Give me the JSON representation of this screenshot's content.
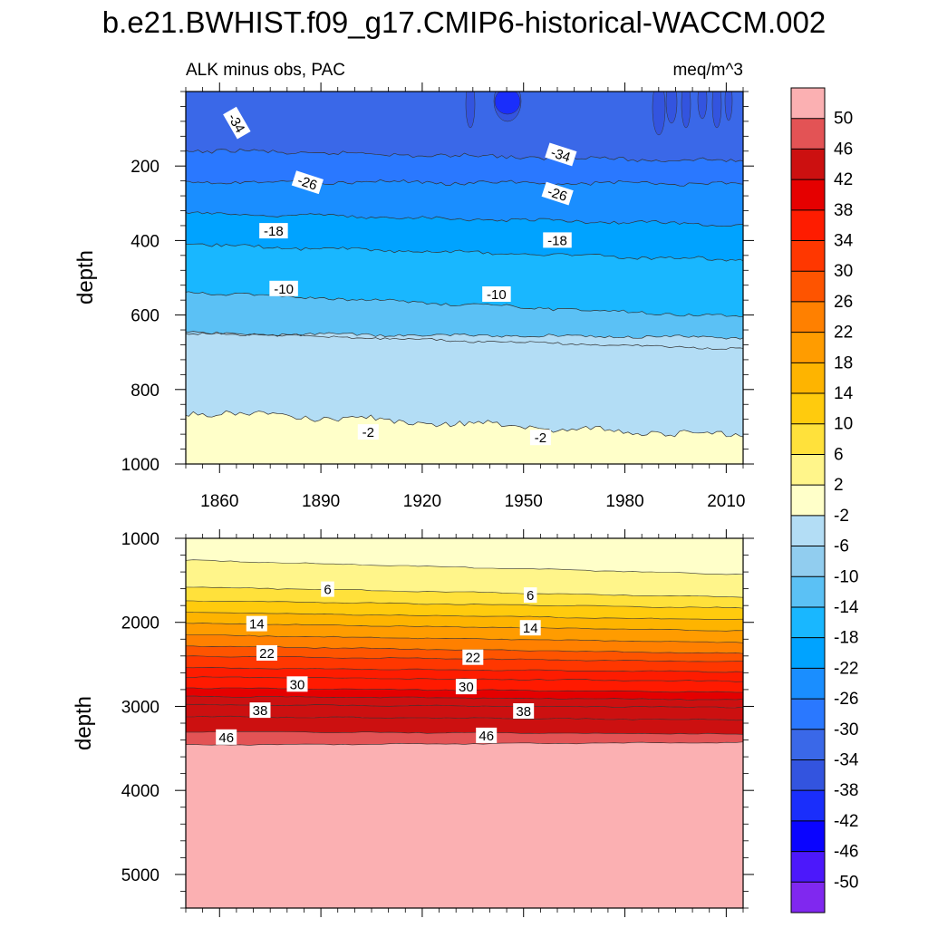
{
  "title": "b.e21.BWHIST.f09_g17.CMIP6-historical-WACCM.002",
  "chart_data": {
    "type": "contour",
    "variable_label": "ALK minus obs, PAC",
    "units": "meq/m^3",
    "x_ticks": [
      "1860",
      "1890",
      "1920",
      "1950",
      "1980",
      "2010"
    ],
    "x_tick_values": [
      1860,
      1890,
      1920,
      1950,
      1980,
      2010
    ],
    "xlim": [
      1850,
      2015
    ],
    "colorbar": {
      "labels": [
        "50",
        "46",
        "42",
        "38",
        "34",
        "30",
        "26",
        "22",
        "18",
        "14",
        "10",
        "6",
        "2",
        "-2",
        "-6",
        "-10",
        "-14",
        "-18",
        "-22",
        "-26",
        "-30",
        "-34",
        "-38",
        "-42",
        "-46",
        "-50"
      ],
      "colors": [
        "#fbb0b2",
        "#e35355",
        "#cc1010",
        "#e50000",
        "#fe1c00",
        "#ff3700",
        "#fe5400",
        "#ff8000",
        "#ff9c00",
        "#feb400",
        "#ffcb0d",
        "#ffe13b",
        "#fff58a",
        "#ffffc9",
        "#b3ddf5",
        "#91cdef",
        "#5bc1f5",
        "#19b7ff",
        "#00a3ff",
        "#1a8eff",
        "#2a78ff",
        "#3a68e8",
        "#3354df",
        "#1a2efb",
        "#0a04ff",
        "#4c18fb",
        "#8028ef"
      ]
    },
    "panels": [
      {
        "name": "upper",
        "ylabel": "depth",
        "ylim": [
          0,
          1000
        ],
        "y_ticks": [
          "200",
          "400",
          "600",
          "800",
          "1000"
        ],
        "y_tick_values": [
          200,
          400,
          600,
          800,
          1000
        ],
        "contour_labels": [
          {
            "text": "-34",
            "year": 1865,
            "depth": 85
          },
          {
            "text": "-34",
            "year": 1961,
            "depth": 170
          },
          {
            "text": "-26",
            "year": 1886,
            "depth": 245
          },
          {
            "text": "-26",
            "year": 1960,
            "depth": 275
          },
          {
            "text": "-18",
            "year": 1876,
            "depth": 375
          },
          {
            "text": "-18",
            "year": 1960,
            "depth": 400
          },
          {
            "text": "-10",
            "year": 1879,
            "depth": 530
          },
          {
            "text": "-10",
            "year": 1942,
            "depth": 545
          },
          {
            "text": "-2",
            "year": 1904,
            "depth": 915
          },
          {
            "text": "-2",
            "year": 1955,
            "depth": 930
          }
        ]
      },
      {
        "name": "lower",
        "ylabel": "depth",
        "ylim": [
          1000,
          5400
        ],
        "y_ticks": [
          "1000",
          "2000",
          "3000",
          "4000",
          "5000"
        ],
        "y_tick_values": [
          1000,
          2000,
          3000,
          4000,
          5000
        ],
        "contour_labels": [
          {
            "text": "6",
            "year": 1892,
            "depth": 1610
          },
          {
            "text": "6",
            "year": 1952,
            "depth": 1680
          },
          {
            "text": "14",
            "year": 1871,
            "depth": 2020
          },
          {
            "text": "14",
            "year": 1952,
            "depth": 2070
          },
          {
            "text": "22",
            "year": 1874,
            "depth": 2370
          },
          {
            "text": "22",
            "year": 1935,
            "depth": 2420
          },
          {
            "text": "30",
            "year": 1883,
            "depth": 2740
          },
          {
            "text": "30",
            "year": 1933,
            "depth": 2770
          },
          {
            "text": "38",
            "year": 1872,
            "depth": 3050
          },
          {
            "text": "38",
            "year": 1950,
            "depth": 3060
          },
          {
            "text": "46",
            "year": 1862,
            "depth": 3370
          },
          {
            "text": "46",
            "year": 1939,
            "depth": 3350
          }
        ]
      }
    ]
  }
}
